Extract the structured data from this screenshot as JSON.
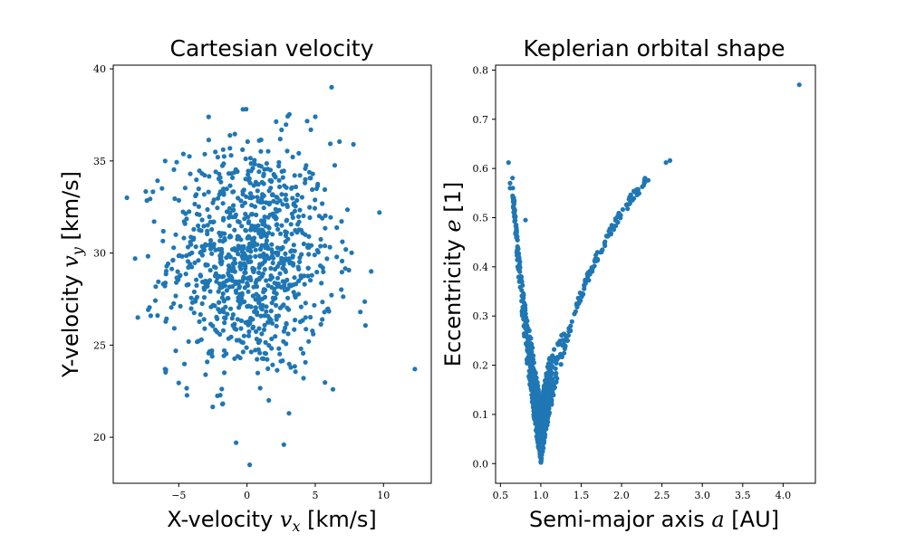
{
  "colors": {
    "series": "#1f77b4",
    "axes": "#000000",
    "background": "#ffffff"
  },
  "chart_data": [
    {
      "type": "scatter",
      "title": "Cartesian velocity",
      "xlabel": "X-velocity v_x [km/s]",
      "xlabel_parts": {
        "pre": "X-velocity ",
        "var": "v",
        "sub": "x",
        "post": " [km/s]"
      },
      "ylabel": "Y-velocity v_y [km/s]",
      "ylabel_parts": {
        "pre": "Y-velocity ",
        "var": "v",
        "sub": "y",
        "post": " [km/s]"
      },
      "xlim": [
        -9.8,
        13.5
      ],
      "ylim": [
        17.5,
        40.2
      ],
      "xticks": [
        -5,
        0,
        5,
        10
      ],
      "xtick_labels": [
        "−5",
        "0",
        "5",
        "10"
      ],
      "yticks": [
        20,
        25,
        30,
        35,
        40
      ],
      "ytick_labels": [
        "20",
        "25",
        "30",
        "35",
        "40"
      ],
      "grid": false,
      "legend": "none",
      "series": [
        {
          "description_of_bulk": "approx. 1000 points, roughly normal around (0.3, 29.7) with sd ~(3, 3.2); outliers listed below",
          "outliers": [
            {
              "x": 6.2,
              "y": 39.0
            },
            {
              "x": 0.2,
              "y": 18.5
            },
            {
              "x": -0.8,
              "y": 19.7
            },
            {
              "x": 2.7,
              "y": 19.6
            },
            {
              "x": 12.3,
              "y": 23.7
            },
            {
              "x": -8.8,
              "y": 33.0
            },
            {
              "x": -8.2,
              "y": 29.7
            },
            {
              "x": -8.0,
              "y": 26.5
            },
            {
              "x": -1.8,
              "y": 21.8
            },
            {
              "x": 9.7,
              "y": 32.2
            },
            {
              "x": 9.1,
              "y": 29.0
            },
            {
              "x": 8.3,
              "y": 26.8
            },
            {
              "x": 6.3,
              "y": 22.6
            },
            {
              "x": 7.8,
              "y": 35.9
            },
            {
              "x": -0.3,
              "y": 37.8
            },
            {
              "x": 5.0,
              "y": 37.4
            },
            {
              "x": -6.0,
              "y": 23.7
            },
            {
              "x": 1.6,
              "y": 22.0
            }
          ],
          "bulk": {
            "n": 982,
            "mean_x": 0.3,
            "mean_y": 29.7,
            "sd_x": 3.0,
            "sd_y": 3.2
          }
        }
      ]
    },
    {
      "type": "scatter",
      "title": "Keplerian orbital shape",
      "xlabel": "Semi-major axis a [AU]",
      "xlabel_parts": {
        "pre": "Semi-major axis ",
        "var": "a",
        "sub": "",
        "post": " [AU]"
      },
      "ylabel": "Eccentricity e [1]",
      "ylabel_parts": {
        "pre": "Eccentricity ",
        "var": "e",
        "sub": "",
        "post": " [1]"
      },
      "xlim": [
        0.44,
        4.4
      ],
      "ylim": [
        -0.04,
        0.81
      ],
      "xticks": [
        0.5,
        1.0,
        1.5,
        2.0,
        2.5,
        3.0,
        3.5,
        4.0
      ],
      "xtick_labels": [
        "0.5",
        "1.0",
        "1.5",
        "2.0",
        "2.5",
        "3.0",
        "3.5",
        "4.0"
      ],
      "yticks": [
        0.0,
        0.1,
        0.2,
        0.3,
        0.4,
        0.5,
        0.6,
        0.7,
        0.8
      ],
      "ytick_labels": [
        "0.0",
        "0.1",
        "0.2",
        "0.3",
        "0.4",
        "0.5",
        "0.6",
        "0.7",
        "0.8"
      ],
      "grid": false,
      "legend": "none",
      "series": [
        {
          "description_of_bulk": "V-shaped cloud with vertex near a=1.0, e=0; left arm e≈(1-a)/a, right arm e≈(a-1)/a, ~1000 points",
          "outliers": [
            {
              "x": 4.2,
              "y": 0.77
            },
            {
              "x": 0.6,
              "y": 0.612
            },
            {
              "x": 0.62,
              "y": 0.57
            },
            {
              "x": 0.62,
              "y": 0.56
            },
            {
              "x": 0.81,
              "y": 0.495
            },
            {
              "x": 2.6,
              "y": 0.616
            },
            {
              "x": 2.55,
              "y": 0.612
            },
            {
              "x": 2.33,
              "y": 0.576
            }
          ],
          "bulk": {
            "n": 992,
            "vertex_a": 1.0,
            "vertex_e": 0.0
          }
        }
      ]
    }
  ]
}
